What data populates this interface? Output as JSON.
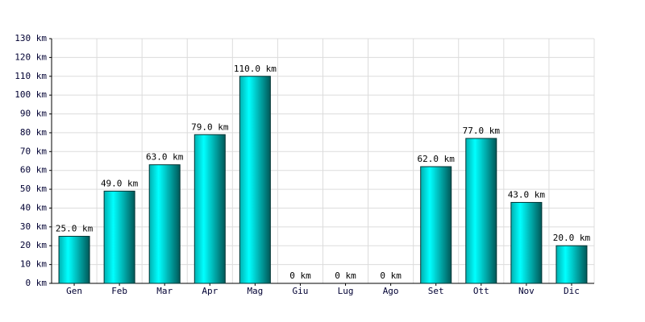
{
  "chart_data": {
    "type": "bar",
    "categories": [
      "Gen",
      "Feb",
      "Mar",
      "Apr",
      "Mag",
      "Giu",
      "Lug",
      "Ago",
      "Set",
      "Ott",
      "Nov",
      "Dic"
    ],
    "values": [
      25,
      49,
      63,
      79,
      110,
      0,
      0,
      0,
      62,
      77,
      43,
      20
    ],
    "value_labels": [
      "25.0 km",
      "49.0 km",
      "63.0 km",
      "79.0 km",
      "110.0 km",
      "0 km",
      "0 km",
      "0 km",
      "62.0 km",
      "77.0 km",
      "43.0 km",
      "20.0 km"
    ],
    "color": "#00e0e0",
    "ylim": [
      0,
      130
    ],
    "yticks": [
      {
        "value": 0,
        "label": "0 km"
      },
      {
        "value": 10,
        "label": "10 km"
      },
      {
        "value": 20,
        "label": "20 km"
      },
      {
        "value": 30,
        "label": "30 km"
      },
      {
        "value": 40,
        "label": "40 km"
      },
      {
        "value": 50,
        "label": "50 km"
      },
      {
        "value": 60,
        "label": "60 km"
      },
      {
        "value": 70,
        "label": "70 km"
      },
      {
        "value": 80,
        "label": "80 km"
      },
      {
        "value": 90,
        "label": "90 km"
      },
      {
        "value": 100,
        "label": "100 km"
      },
      {
        "value": 110,
        "label": "110 km"
      },
      {
        "value": 120,
        "label": "120 km"
      },
      {
        "value": 130,
        "label": "130 km"
      }
    ],
    "grid": true
  }
}
